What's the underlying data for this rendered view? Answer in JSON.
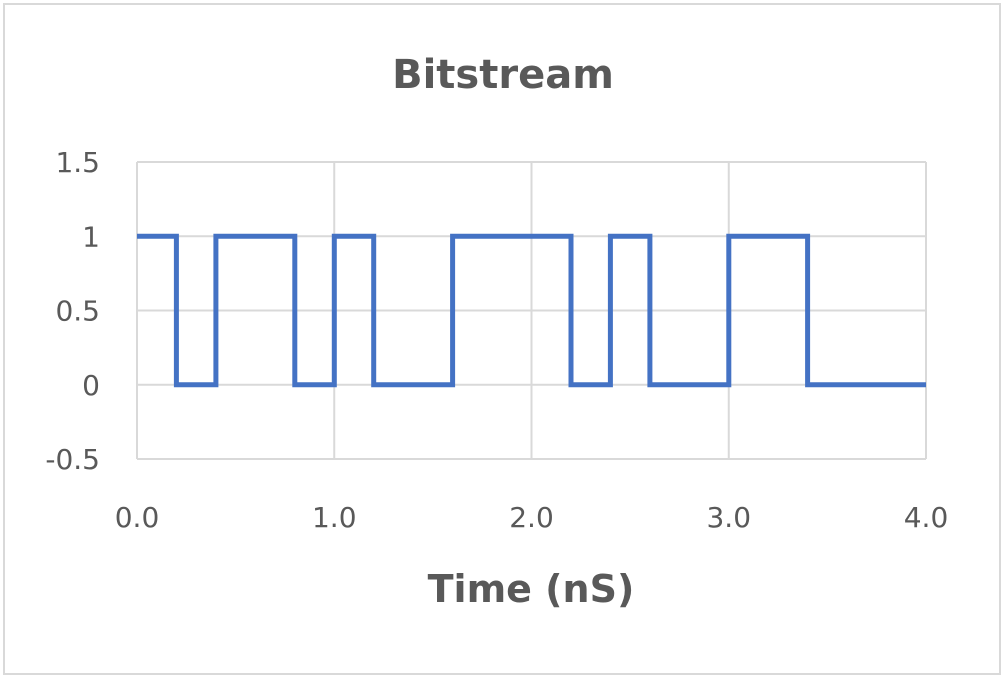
{
  "chart_data": {
    "type": "line",
    "step": true,
    "title": "Bitstream",
    "xlabel": "Time (nS)",
    "ylabel": "",
    "xlim": [
      0,
      4
    ],
    "ylim": [
      -0.5,
      1.5
    ],
    "x_ticks": [
      "0.0",
      "1.0",
      "2.0",
      "3.0",
      "4.0"
    ],
    "y_ticks": [
      "1.5",
      "1",
      "0.5",
      "0",
      "-0.5"
    ],
    "grid": true,
    "legend": "none",
    "series": [
      {
        "color": "#4472C4",
        "x": [
          0.0,
          0.2,
          0.2,
          0.4,
          0.4,
          0.8,
          0.8,
          1.0,
          1.0,
          1.2,
          1.2,
          1.6,
          1.6,
          2.2,
          2.2,
          2.4,
          2.4,
          2.6,
          2.6,
          3.0,
          3.0,
          3.4,
          3.4,
          4.0
        ],
        "y": [
          1,
          1,
          0,
          0,
          1,
          1,
          0,
          0,
          1,
          1,
          0,
          0,
          1,
          1,
          0,
          0,
          1,
          1,
          0,
          0,
          1,
          1,
          0,
          0
        ]
      }
    ]
  }
}
